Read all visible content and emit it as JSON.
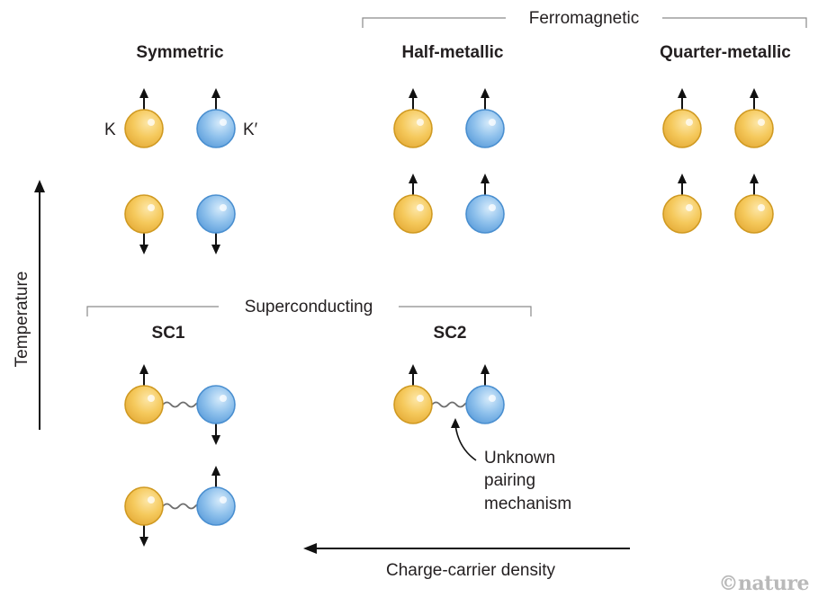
{
  "colors": {
    "k_valley": "#f5c95c",
    "k_valley_stroke": "#d09a22",
    "kprime_valley": "#8fc1ec",
    "kprime_valley_stroke": "#4a8fd0",
    "bracket": "#8a8a8a",
    "text": "#231f20"
  },
  "groups": {
    "ferromagnetic": "Ferromagnetic",
    "superconducting": "Superconducting"
  },
  "states": {
    "symmetric": "Symmetric",
    "half_metallic": "Half-metallic",
    "quarter_metallic": "Quarter-metallic",
    "sc1": "SC1",
    "sc2": "SC2"
  },
  "valley_labels": {
    "k": "K",
    "kprime": "K′"
  },
  "axes": {
    "temperature": "Temperature",
    "density": "Charge-carrier density"
  },
  "annotation": {
    "line1": "Unknown",
    "line2": "pairing",
    "line3": "mechanism"
  },
  "watermark": "©nature"
}
